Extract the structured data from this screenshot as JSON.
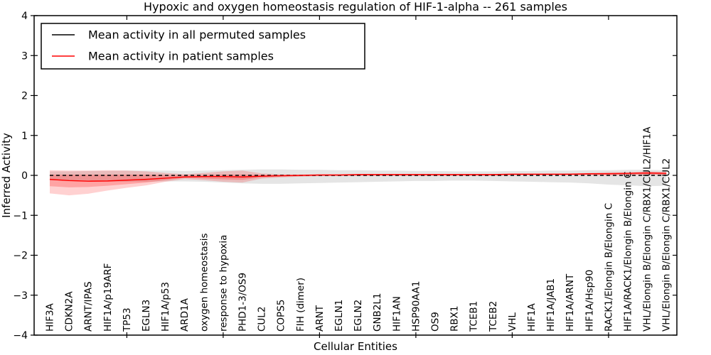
{
  "chart_data": {
    "type": "line",
    "title": "Hypoxic and oxygen homeostasis regulation of HIF-1-alpha -- 261 samples",
    "xlabel": "Cellular Entities",
    "ylabel": "Inferred Activity",
    "ylim": [
      -4,
      4
    ],
    "yticks": [
      4,
      3,
      2,
      1,
      0,
      -1,
      -2,
      -3,
      -4
    ],
    "xtick_major_every": 5,
    "grid": false,
    "legend_position": "upper left",
    "sample_count_in_title": "261",
    "categories": [
      "HIF3A",
      "CDKN2A",
      "ARNT/IPAS",
      "HIF1A/p19ARF",
      "TP53",
      "EGLN3",
      "HIF1A/p53",
      "ARD1A",
      "oxygen homeostasis",
      "response to hypoxia",
      "PHD1-3/OS9",
      "CUL2",
      "COPS5",
      "FIH (dimer)",
      "ARNT",
      "EGLN1",
      "EGLN2",
      "GNB2L1",
      "HIF1AN",
      "HSP90AA1",
      "OS9",
      "RBX1",
      "TCEB1",
      "TCEB2",
      "VHL",
      "HIF1A",
      "HIF1A/JAB1",
      "HIF1A/ARNT",
      "HIF1A/Hsp90",
      "RACK1/Elongin B/Elongin C",
      "HIF1A/RACK1/Elongin B/Elongin C",
      "VHL/Elongin B/Elongin C/RBX1/CUL2/HIF1A",
      "VHL/Elongin B/Elongin C/RBX1/CUL2"
    ],
    "series": [
      {
        "name": "Mean activity in all permuted samples",
        "color": "#000000",
        "style": "dashed",
        "values": [
          0,
          0,
          0,
          0,
          0,
          0,
          0,
          0,
          0,
          0,
          0,
          0,
          0,
          0,
          0,
          0,
          0,
          0,
          0,
          0,
          0,
          0,
          0,
          0,
          0,
          0,
          0,
          0,
          0,
          0,
          0,
          0,
          0
        ]
      },
      {
        "name": "Mean activity in patient samples",
        "color": "#ff0000",
        "style": "solid",
        "values": [
          -0.1,
          -0.13,
          -0.145,
          -0.14,
          -0.12,
          -0.1,
          -0.07,
          -0.04,
          -0.03,
          -0.03,
          -0.04,
          -0.02,
          -0.01,
          0,
          0.01,
          0.01,
          0.02,
          0.02,
          0.02,
          0.02,
          0.02,
          0.02,
          0.02,
          0.02,
          0.03,
          0.03,
          0.03,
          0.03,
          0.04,
          0.04,
          0.05,
          0.06,
          0.05
        ]
      }
    ],
    "bands": [
      {
        "name": "permuted-range",
        "color": "#000000",
        "opacity": 0.1,
        "upper": [
          0.1,
          0.1,
          0.11,
          0.11,
          0.12,
          0.12,
          0.12,
          0.11,
          0.12,
          0.13,
          0.14,
          0.15,
          0.15,
          0.14,
          0.14,
          0.13,
          0.13,
          0.12,
          0.12,
          0.11,
          0.11,
          0.1,
          0.1,
          0.1,
          0.11,
          0.11,
          0.12,
          0.12,
          0.13,
          0.13,
          0.14,
          0.14,
          0.13
        ],
        "lower": [
          -0.12,
          -0.13,
          -0.14,
          -0.15,
          -0.16,
          -0.16,
          -0.15,
          -0.15,
          -0.16,
          -0.18,
          -0.2,
          -0.21,
          -0.21,
          -0.2,
          -0.19,
          -0.18,
          -0.17,
          -0.16,
          -0.15,
          -0.14,
          -0.14,
          -0.13,
          -0.13,
          -0.14,
          -0.15,
          -0.16,
          -0.17,
          -0.18,
          -0.2,
          -0.23,
          -0.25,
          -0.27,
          -0.26
        ]
      },
      {
        "name": "patient-outer-range",
        "color": "#ff0000",
        "opacity": 0.18,
        "upper": [
          0.13,
          0.12,
          0.12,
          0.13,
          0.12,
          0.1,
          0.06,
          0.03,
          0.06,
          0.1,
          0.12,
          0.05,
          0.03,
          0.02,
          0.03,
          0.03,
          0.03,
          0.03,
          0.03,
          0.03,
          0.03,
          0.03,
          0.03,
          0.03,
          0.04,
          0.04,
          0.04,
          0.05,
          0.06,
          0.08,
          0.08,
          0.1,
          0.09
        ],
        "lower": [
          -0.45,
          -0.5,
          -0.46,
          -0.38,
          -0.31,
          -0.25,
          -0.16,
          -0.09,
          -0.12,
          -0.16,
          -0.18,
          -0.08,
          -0.05,
          -0.03,
          -0.02,
          -0.02,
          -0.01,
          -0.01,
          -0.01,
          -0.01,
          -0.01,
          -0.01,
          -0.01,
          -0.01,
          0.0,
          0.0,
          0.0,
          0.0,
          0.0,
          -0.01,
          0.0,
          0.01,
          0.0
        ]
      },
      {
        "name": "patient-inner-range",
        "color": "#ff0000",
        "opacity": 0.22,
        "upper": [
          0.02,
          0.02,
          0.02,
          0.02,
          0.02,
          0.02,
          0.01,
          0.0,
          0.01,
          0.02,
          0.02,
          0.01,
          0.01,
          0.01,
          0.02,
          0.02,
          0.03,
          0.03,
          0.03,
          0.03,
          0.03,
          0.03,
          0.03,
          0.03,
          0.04,
          0.04,
          0.04,
          0.04,
          0.05,
          0.06,
          0.06,
          0.08,
          0.07
        ],
        "lower": [
          -0.27,
          -0.3,
          -0.29,
          -0.26,
          -0.22,
          -0.18,
          -0.12,
          -0.06,
          -0.08,
          -0.1,
          -0.11,
          -0.05,
          -0.03,
          -0.02,
          -0.01,
          -0.01,
          0.0,
          0.0,
          0.0,
          0.0,
          0.0,
          0.0,
          0.0,
          0.0,
          0.01,
          0.01,
          0.01,
          0.01,
          0.02,
          0.02,
          0.02,
          0.03,
          0.02
        ]
      }
    ]
  }
}
